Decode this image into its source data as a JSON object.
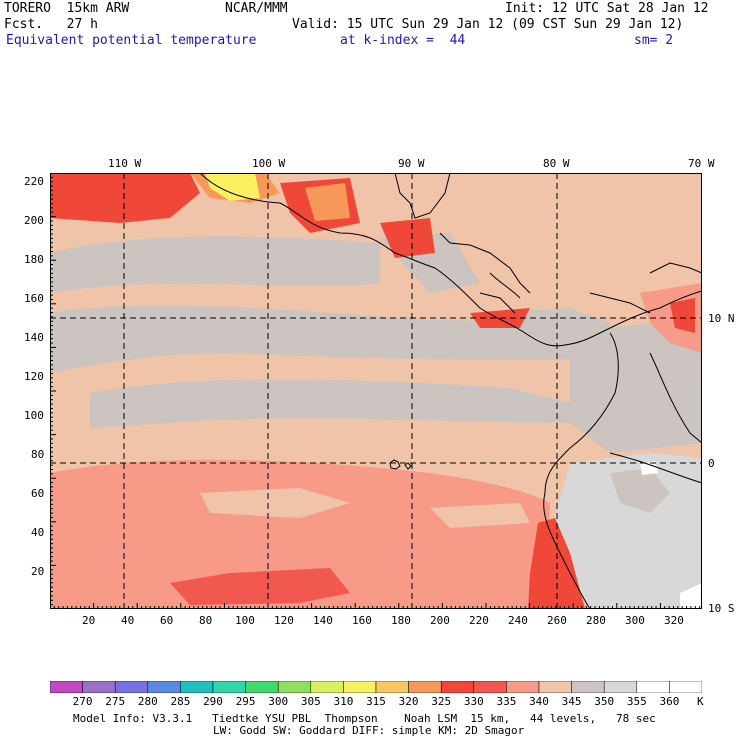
{
  "header": {
    "model": "TORERO  15km ARW",
    "center": "NCAR/MMM",
    "init": "Init: 12 UTC Sat 28 Jan 12",
    "fcst": "Fcst.   27 h",
    "valid": "Valid: 15 UTC Sun 29 Jan 12 (09 CST Sun 29 Jan 12)",
    "field": "Equivalent potential temperature",
    "level": "at k-index =  44",
    "smooth": "sm= 2"
  },
  "map": {
    "lon_labels": [
      "110 W",
      "100 W",
      "90 W",
      "80 W",
      "70 W"
    ],
    "lat_labels": [
      "10 N",
      "0",
      "10 S"
    ],
    "left_ticks": [
      "220",
      "200",
      "180",
      "160",
      "140",
      "120",
      "100",
      "80",
      "60",
      "40",
      "20"
    ],
    "bottom_ticks": [
      "20",
      "40",
      "60",
      "80",
      "100",
      "120",
      "140",
      "160",
      "180",
      "200",
      "220",
      "240",
      "260",
      "280",
      "300",
      "320"
    ],
    "grid_x_range": [
      0,
      333
    ],
    "grid_y_range": [
      0,
      224
    ]
  },
  "colorbar": {
    "labels": [
      "270",
      "275",
      "280",
      "285",
      "290",
      "295",
      "300",
      "305",
      "310",
      "315",
      "320",
      "325",
      "330",
      "335",
      "340",
      "345",
      "350",
      "355",
      "360"
    ],
    "unit": "K",
    "colors": [
      "#c048c0",
      "#9a70c8",
      "#7a70e0",
      "#5a8ae0",
      "#20c0c0",
      "#30d8a8",
      "#40d870",
      "#90e060",
      "#d8f060",
      "#f8f060",
      "#f8c860",
      "#f89858",
      "#f04838",
      "#f05850",
      "#f89a88",
      "#f0c4a8",
      "#cbc4c0",
      "#d8d8d8",
      "#ffffff"
    ]
  },
  "footer": {
    "line1": "Model Info: V3.3.1   Tiedtke YSU PBL  Thompson    Noah LSM  15 km,   44 levels,   78 sec",
    "line2": "LW: Godd SW: Goddard DIFF: simple KM: 2D Smagor"
  }
}
